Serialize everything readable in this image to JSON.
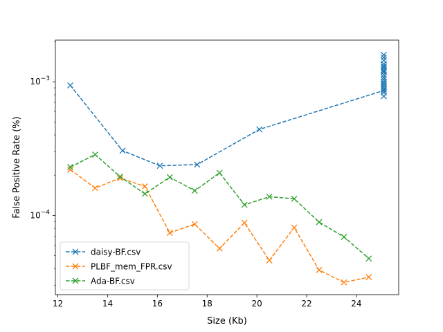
{
  "chart_data": {
    "type": "line",
    "title": "",
    "xlabel": "Size (Kb)",
    "ylabel": "False Positive Rate (%)",
    "xlim": [
      11.9,
      25.7
    ],
    "ylim": [
      2.55e-05,
      0.00205
    ],
    "yscale": "log",
    "x_ticks": [
      12,
      14,
      16,
      18,
      20,
      22,
      24
    ],
    "x_tick_labels": [
      "12",
      "14",
      "16",
      "18",
      "20",
      "22",
      "24"
    ],
    "y_ticks": [
      0.0001,
      0.001
    ],
    "y_tick_labels": [
      {
        "base": "10",
        "exp": "−4"
      },
      {
        "base": "10",
        "exp": "−3"
      }
    ],
    "grid": false,
    "legend_position": "lower-left",
    "series": [
      {
        "name": "daisy-BF.csv",
        "color": "#1f77b4",
        "linestyle": "dashed",
        "marker": "x",
        "x": [
          12.5,
          14.6,
          16.1,
          17.6,
          20.1,
          25.1
        ],
        "y": [
          0.00094,
          0.000305,
          0.000235,
          0.00024,
          0.00044,
          0.00086
        ]
      },
      {
        "name": "PLBF_mem_FPR.csv",
        "color": "#ff7f0e",
        "linestyle": "dashed",
        "marker": "x",
        "x": [
          12.5,
          13.5,
          14.5,
          15.5,
          16.5,
          17.5,
          18.5,
          19.5,
          20.5,
          21.5,
          22.5,
          23.5,
          24.5
        ],
        "y": [
          0.00022,
          0.00016,
          0.00019,
          0.000165,
          7.4e-05,
          8.6e-05,
          5.65e-05,
          8.8e-05,
          4.6e-05,
          8.1e-05,
          3.9e-05,
          3.15e-05,
          3.45e-05
        ]
      },
      {
        "name": "Ada-BF.csv",
        "color": "#2ca02c",
        "linestyle": "dashed",
        "marker": "x",
        "x": [
          12.5,
          13.5,
          14.5,
          15.5,
          16.5,
          17.5,
          18.5,
          19.5,
          20.5,
          21.5,
          22.5,
          23.5,
          24.5
        ],
        "y": [
          0.00023,
          0.000285,
          0.000195,
          0.000145,
          0.000193,
          0.000153,
          0.000208,
          0.00012,
          0.000138,
          0.000133,
          8.9e-05,
          6.9e-05,
          4.75e-05
        ]
      }
    ],
    "extra_points": [
      {
        "series": "daisy-BF.csv",
        "x": [
          25.1,
          25.1,
          25.1,
          25.1,
          25.1,
          25.1,
          25.1,
          25.1,
          25.1,
          25.1,
          25.1,
          25.1,
          25.1,
          25.1,
          25.1,
          25.1,
          25.1,
          25.1,
          25.1
        ],
        "y": [
          0.00159,
          0.00152,
          0.00145,
          0.00136,
          0.00128,
          0.00123,
          0.00118,
          0.00113,
          0.00108,
          0.00104,
          0.001,
          0.00097,
          0.00094,
          0.00091,
          0.00088,
          0.00083,
          0.00078,
          0.0012,
          0.00131
        ]
      }
    ]
  }
}
